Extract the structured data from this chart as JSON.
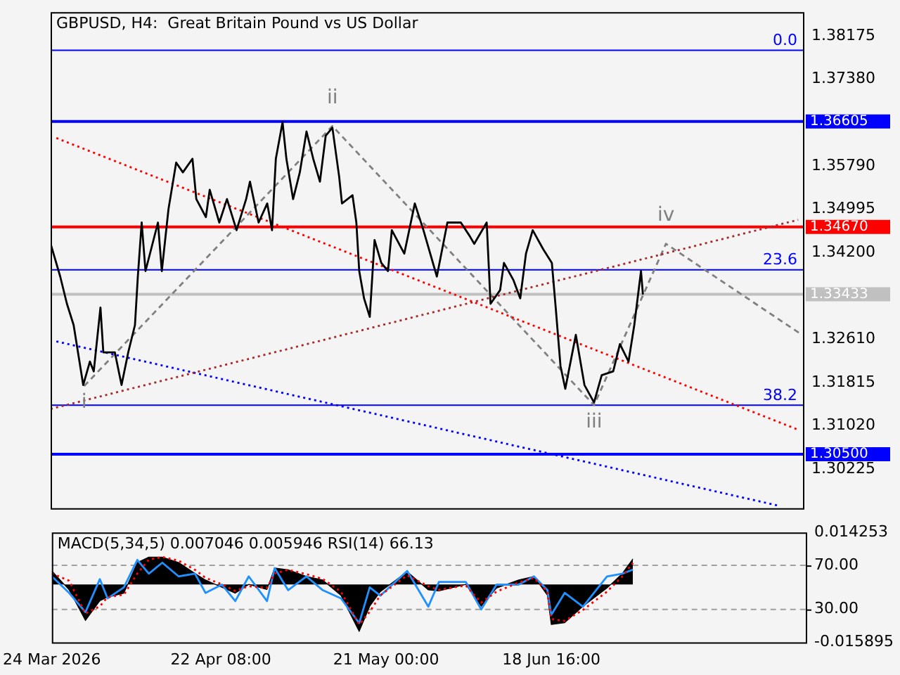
{
  "chart_data": [
    {
      "type": "line",
      "title": "GBPUSD, H4:  Great Britain Pound vs US Dollar",
      "xlim": [
        "2026-03-24T00:00",
        "2026-08-01T20:00"
      ],
      "ylim": [
        1.2951,
        1.3861
      ],
      "yticks": [
        {
          "value": 1.38175,
          "label": "1.38175"
        },
        {
          "value": 1.3738,
          "label": "1.37380"
        },
        {
          "value": 1.3579,
          "label": "1.35790"
        },
        {
          "value": 1.34995,
          "label": "1.34995"
        },
        {
          "value": 1.342,
          "label": "1.34200"
        },
        {
          "value": 1.3261,
          "label": "1.32610"
        },
        {
          "value": 1.31815,
          "label": "1.31815"
        },
        {
          "value": 1.3102,
          "label": "1.31020"
        },
        {
          "value": 1.30225,
          "label": "1.30225"
        }
      ],
      "tick_labels": "y",
      "series": [
        {
          "color": "#000000",
          "x": [
            "2026-03-24T00:00",
            "2026-03-25T16:00",
            "2026-03-26T20:00",
            "2026-03-28T00:00",
            "2026-03-29T16:00",
            "2026-03-30T20:00",
            "2026-03-31T12:00",
            "2026-04-01T16:00",
            "2026-04-02T04:00",
            "2026-04-04T04:00",
            "2026-04-05T08:00",
            "2026-04-06T12:00",
            "2026-04-07T16:00",
            "2026-04-08T04:00",
            "2026-04-08T20:00",
            "2026-04-09T12:00",
            "2026-04-11T16:00",
            "2026-04-12T08:00",
            "2026-04-13T12:00",
            "2026-04-14T20:00",
            "2026-04-16T00:00",
            "2026-04-17T16:00",
            "2026-04-18T08:00",
            "2026-04-20T00:00",
            "2026-04-20T16:00",
            "2026-04-22T08:00",
            "2026-04-23T16:00",
            "2026-04-25T08:00",
            "2026-04-27T00:00",
            "2026-04-27T16:00",
            "2026-04-29T04:00",
            "2026-04-30T16:00",
            "2026-05-01T12:00",
            "2026-05-02T04:00",
            "2026-05-03T08:00",
            "2026-05-04T00:00",
            "2026-05-05T04:00",
            "2026-05-06T08:00",
            "2026-05-07T12:00",
            "2026-05-08T16:00",
            "2026-05-09T20:00",
            "2026-05-10T20:00",
            "2026-05-12T00:00",
            "2026-05-13T04:00",
            "2026-05-13T16:00",
            "2026-05-15T12:00",
            "2026-05-16T04:00",
            "2026-05-16T16:00",
            "2026-05-17T12:00",
            "2026-05-18T12:00",
            "2026-05-19T08:00",
            "2026-05-20T12:00",
            "2026-05-21T16:00",
            "2026-05-22T08:00",
            "2026-05-24T12:00",
            "2026-05-26T08:00",
            "2026-05-27T20:00",
            "2026-05-30T04:00",
            "2026-06-01T00:00",
            "2026-06-03T08:00",
            "2026-06-04T20:00",
            "2026-06-05T16:00",
            "2026-06-07T20:00",
            "2026-06-08T12:00",
            "2026-06-10T04:00",
            "2026-06-10T20:00",
            "2026-06-12T12:00",
            "2026-06-13T16:00",
            "2026-06-14T16:00",
            "2026-06-15T20:00",
            "2026-06-17T16:00",
            "2026-06-19T04:00",
            "2026-06-19T20:00",
            "2026-06-20T16:00",
            "2026-06-21T12:00",
            "2026-06-23T08:00",
            "2026-06-24T20:00",
            "2026-06-26T12:00",
            "2026-06-27T20:00",
            "2026-06-29T20:00",
            "2026-07-01T00:00",
            "2026-07-02T12:00",
            "2026-07-03T12:00",
            "2026-07-04T16:00",
            "2026-07-05T00:00"
          ],
          "values": [
            1.3436,
            1.3376,
            1.3326,
            1.3287,
            1.3177,
            1.322,
            1.3202,
            1.3319,
            1.3237,
            1.3237,
            1.3177,
            1.3237,
            1.3287,
            1.3376,
            1.3475,
            1.3386,
            1.3475,
            1.3386,
            1.35,
            1.3585,
            1.3567,
            1.3592,
            1.3518,
            1.3485,
            1.3535,
            1.3475,
            1.3518,
            1.3461,
            1.3518,
            1.355,
            1.3475,
            1.351,
            1.3461,
            1.3592,
            1.3659,
            1.3592,
            1.3518,
            1.3567,
            1.3642,
            1.3592,
            1.355,
            1.3634,
            1.3649,
            1.356,
            1.351,
            1.3525,
            1.3475,
            1.3386,
            1.3336,
            1.3302,
            1.3443,
            1.3401,
            1.3386,
            1.3461,
            1.3418,
            1.351,
            1.3461,
            1.3376,
            1.3475,
            1.3475,
            1.3451,
            1.3436,
            1.3475,
            1.3326,
            1.3351,
            1.3401,
            1.3369,
            1.3336,
            1.3418,
            1.3461,
            1.3426,
            1.3401,
            1.3319,
            1.3212,
            1.317,
            1.3269,
            1.3177,
            1.3145,
            1.3195,
            1.3202,
            1.3252,
            1.322,
            1.3287,
            1.3386,
            1.3343
          ]
        },
        {
          "color": "#ff0000",
          "line_style": "dotted",
          "x": [
            "2026-03-25T00:00",
            "2026-08-01T00:00"
          ],
          "values": [
            1.363,
            1.3095
          ]
        },
        {
          "color": "#a52a2a",
          "line_style": "dotted",
          "x": [
            "2026-03-24T00:00",
            "2026-08-01T00:00"
          ],
          "values": [
            1.3133,
            1.348
          ]
        },
        {
          "color": "#0000ff",
          "line_style": "dotted",
          "x": [
            "2026-03-25T00:00",
            "2026-07-28T20:00"
          ],
          "values": [
            1.3257,
            1.2955
          ]
        },
        {
          "color": "#808080",
          "line_style": "dashed",
          "x": [
            "2026-03-29T20:00",
            "2026-05-12T00:00",
            "2026-06-26T12:00",
            "2026-07-09T00:00",
            "2026-08-01T16:00"
          ],
          "values": [
            1.3175,
            1.3652,
            1.314,
            1.3436,
            1.3269
          ]
        }
      ],
      "ref_lines": [
        {
          "axis": "y",
          "value": 1.37909,
          "color": "#0000ff"
        },
        {
          "axis": "y",
          "value": 1.36605,
          "label": "1.36605",
          "color": "#0000ff"
        },
        {
          "axis": "y",
          "value": 1.3467,
          "label": "1.34670",
          "color": "#ff0000"
        },
        {
          "axis": "y",
          "value": 1.33884,
          "color": "#0000ff"
        },
        {
          "axis": "y",
          "value": 1.33433,
          "label": "1.33433",
          "color": "#c0c0c0"
        },
        {
          "axis": "y",
          "value": 1.314,
          "color": "#0000ff"
        },
        {
          "axis": "y",
          "value": 1.305,
          "label": "1.30500",
          "color": "#0000ff"
        }
      ],
      "annotations": [
        {
          "text": "0.0",
          "y": 1.37909
        },
        {
          "text": "23.6",
          "y": 1.33884
        },
        {
          "text": "38.2",
          "y": 1.314
        },
        {
          "text": "i",
          "x": "2026-03-29T20:00",
          "y": 1.3175
        },
        {
          "text": "ii",
          "x": "2026-05-12T00:00",
          "y": 1.3652
        },
        {
          "text": "iii",
          "x": "2026-06-26T12:00",
          "y": 1.314
        },
        {
          "text": "iv",
          "x": "2026-07-09T00:00",
          "y": 1.3436
        }
      ]
    },
    {
      "type": "area",
      "title": "MACD(5,34,5) 0.007046 0.005946 RSI(14) 66.13",
      "xlim": [
        "2026-03-24T00:00",
        "2026-08-01T20:00"
      ],
      "xticks": [
        {
          "value": "2026-03-24T00:00",
          "label": "24 Mar 2026"
        },
        {
          "value": "2026-04-22T08:00",
          "label": "22 Apr 08:00"
        },
        {
          "value": "2026-05-21T00:00",
          "label": "21 May 00:00"
        },
        {
          "value": "2026-06-18T16:00",
          "label": "18 Jun 16:00"
        }
      ],
      "ylim": [
        -0.015895,
        0.014253
      ],
      "yticks": [
        0.014253,
        -0.015895
      ],
      "y2lim": [
        0,
        100
      ],
      "y2ticks": [
        {
          "value": 70,
          "label": "70.00"
        },
        {
          "value": 30,
          "label": "30.00"
        }
      ],
      "x": [
        "2026-03-24T00:00",
        "2026-03-27T00:00",
        "2026-03-29T20:00",
        "2026-04-01T08:00",
        "2026-04-02T16:00",
        "2026-04-05T12:00",
        "2026-04-07T20:00",
        "2026-04-09T20:00",
        "2026-04-12T04:00",
        "2026-04-15T00:00",
        "2026-04-17T20:00",
        "2026-04-19T16:00",
        "2026-04-22T12:00",
        "2026-04-24T20:00",
        "2026-04-27T04:00",
        "2026-04-30T08:00",
        "2026-05-01T16:00",
        "2026-05-04T00:00",
        "2026-05-07T04:00",
        "2026-05-10T00:00",
        "2026-05-13T04:00",
        "2026-05-16T08:00",
        "2026-05-18T04:00",
        "2026-05-20T00:00",
        "2026-05-24T16:00",
        "2026-05-28T08:00",
        "2026-05-30T04:00",
        "2026-06-03T20:00",
        "2026-06-06T12:00",
        "2026-06-09T04:00",
        "2026-06-13T00:00",
        "2026-06-15T16:00",
        "2026-06-18T00:00",
        "2026-06-18T16:00",
        "2026-06-21T00:00",
        "2026-06-24T04:00",
        "2026-06-28T08:00",
        "2026-07-01T00:00",
        "2026-07-02T20:00"
      ],
      "series": [
        {
          "color": "#000000",
          "values": [
            0.0037,
            -0.0015,
            -0.0099,
            -0.0045,
            -0.0035,
            -0.0024,
            0.006,
            0.0075,
            0.0075,
            0.006,
            0.003,
            0.0012,
            -0.0008,
            -0.0024,
            0.0,
            -0.0014,
            0.0045,
            0.004,
            0.0022,
            0.0012,
            -0.003,
            -0.0129,
            -0.006,
            -0.002,
            0.0035,
            -0.0015,
            -0.0018,
            0.0,
            -0.006,
            -0.001,
            0.0012,
            0.0022,
            -0.003,
            -0.011,
            -0.0105,
            -0.006,
            -0.001,
            0.003,
            0.007
          ]
        },
        {
          "type": "line",
          "color": "#ff0000",
          "line_style": "dotted",
          "values": [
            0.003,
            0.001,
            -0.008,
            -0.006,
            -0.0035,
            -0.0028,
            0.003,
            0.0068,
            0.0075,
            0.0065,
            0.004,
            0.0018,
            0.0,
            -0.0018,
            -0.0005,
            -0.001,
            0.003,
            0.004,
            0.0028,
            0.0015,
            -0.002,
            -0.011,
            -0.0075,
            -0.003,
            0.0025,
            -0.0005,
            -0.0015,
            -0.0003,
            -0.005,
            -0.002,
            0.0005,
            0.0018,
            -0.002,
            -0.0095,
            -0.01,
            -0.007,
            -0.002,
            0.0022,
            0.0059
          ]
        },
        {
          "type": "line",
          "axis": "y2",
          "color": "#1e90ff",
          "values": [
            60,
            45,
            27.5,
            57.5,
            40,
            50,
            75,
            62.5,
            72.5,
            60,
            62.5,
            45,
            52.5,
            37.5,
            60,
            37.5,
            67.5,
            47.5,
            60,
            47.5,
            40,
            17.5,
            50,
            42.5,
            65,
            32.5,
            55,
            55,
            30,
            52.5,
            52.5,
            60,
            47.5,
            25,
            45,
            32.5,
            60,
            62.5,
            66.13
          ]
        }
      ],
      "ref_lines": [
        {
          "axis": "y2",
          "value": 70,
          "color": "#a0a0a0",
          "line_style": "dashed"
        },
        {
          "axis": "y2",
          "value": 30,
          "color": "#a0a0a0",
          "line_style": "dashed"
        }
      ]
    }
  ]
}
